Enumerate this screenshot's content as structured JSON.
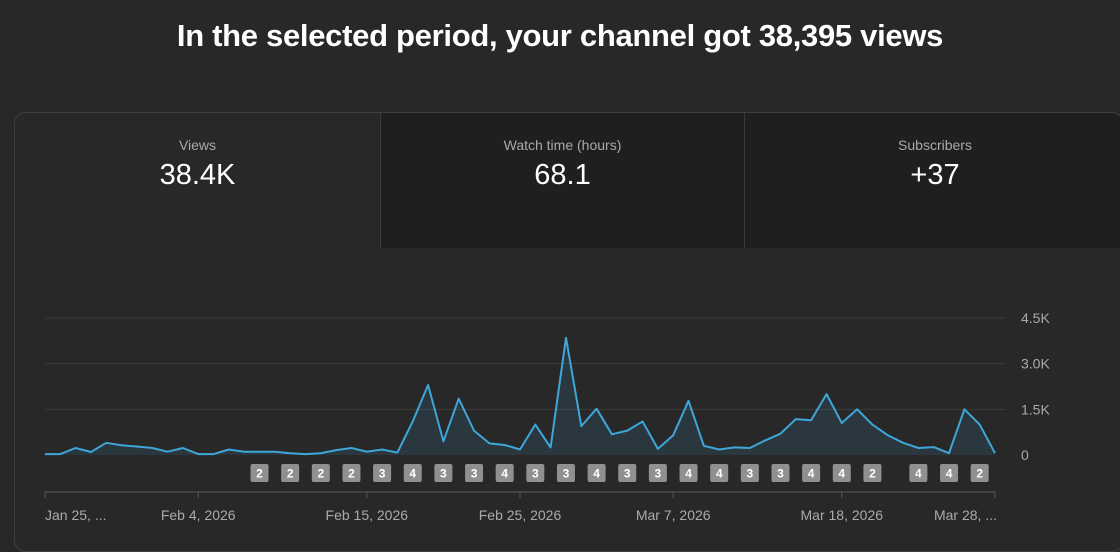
{
  "headline": "In the selected period, your channel got 38,395 views",
  "tabs": [
    {
      "label": "Views",
      "value": "38.4K"
    },
    {
      "label": "Watch time (hours)",
      "value": "68.1"
    },
    {
      "label": "Subscribers",
      "value": "+37"
    }
  ],
  "colors": {
    "line": "#3ea6d8",
    "background": "#282828",
    "marker": "#909090"
  },
  "chart_data": {
    "type": "area",
    "ylim": [
      0,
      4500
    ],
    "y_ticks": [
      {
        "value": 4500,
        "label": "4.5K"
      },
      {
        "value": 3000,
        "label": "3.0K"
      },
      {
        "value": 1500,
        "label": "1.5K"
      },
      {
        "value": 0,
        "label": "0"
      }
    ],
    "x_labels": [
      {
        "index": 0,
        "label": "Jan 25, ..."
      },
      {
        "index": 10,
        "label": "Feb 4, 2026"
      },
      {
        "index": 21,
        "label": "Feb 15, 2026"
      },
      {
        "index": 31,
        "label": "Feb 25, 2026"
      },
      {
        "index": 41,
        "label": "Mar 7, 2026"
      },
      {
        "index": 52,
        "label": "Mar 18, 2026"
      },
      {
        "index": 62,
        "label": "Mar 28, ..."
      }
    ],
    "values": [
      30,
      30,
      230,
      100,
      400,
      320,
      280,
      230,
      110,
      230,
      30,
      30,
      180,
      110,
      110,
      110,
      60,
      30,
      60,
      160,
      230,
      110,
      180,
      80,
      1100,
      2300,
      450,
      1850,
      800,
      380,
      330,
      180,
      1000,
      250,
      3850,
      950,
      1520,
      680,
      800,
      1100,
      200,
      650,
      1780,
      300,
      180,
      250,
      230,
      480,
      700,
      1180,
      1140,
      2000,
      1050,
      1500,
      1000,
      650,
      400,
      230,
      260,
      60,
      1500,
      1000,
      60
    ],
    "markers": [
      {
        "index": 14,
        "label": "2"
      },
      {
        "index": 16,
        "label": "2"
      },
      {
        "index": 18,
        "label": "2"
      },
      {
        "index": 20,
        "label": "2"
      },
      {
        "index": 22,
        "label": "3"
      },
      {
        "index": 24,
        "label": "4"
      },
      {
        "index": 26,
        "label": "3"
      },
      {
        "index": 28,
        "label": "3"
      },
      {
        "index": 30,
        "label": "4"
      },
      {
        "index": 32,
        "label": "3"
      },
      {
        "index": 34,
        "label": "3"
      },
      {
        "index": 36,
        "label": "4"
      },
      {
        "index": 38,
        "label": "3"
      },
      {
        "index": 40,
        "label": "3"
      },
      {
        "index": 42,
        "label": "4"
      },
      {
        "index": 44,
        "label": "4"
      },
      {
        "index": 46,
        "label": "3"
      },
      {
        "index": 48,
        "label": "3"
      },
      {
        "index": 50,
        "label": "4"
      },
      {
        "index": 52,
        "label": "4"
      },
      {
        "index": 54,
        "label": "2"
      },
      {
        "index": 57,
        "label": "4"
      },
      {
        "index": 59,
        "label": "4"
      },
      {
        "index": 61,
        "label": "2"
      }
    ]
  }
}
